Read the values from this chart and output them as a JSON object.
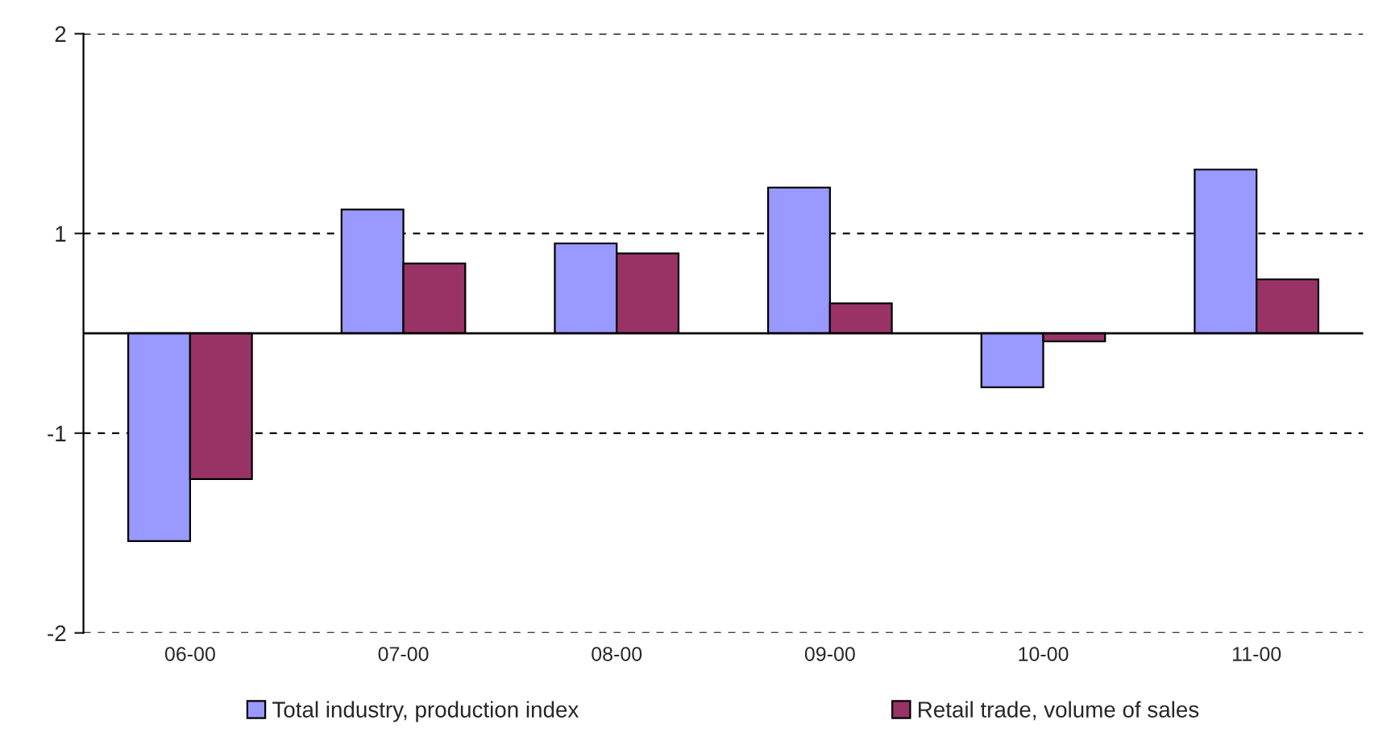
{
  "chart_data": {
    "type": "bar",
    "categories": [
      "06-00",
      "07-00",
      "08-00",
      "09-00",
      "10-00",
      "11-00"
    ],
    "series": [
      {
        "name": "Total industry, production index",
        "color": "#9999ff",
        "values": [
          -1.04,
          0.62,
          0.45,
          0.73,
          -0.27,
          0.82
        ]
      },
      {
        "name": "Retail trade, volume of sales",
        "color": "#993366",
        "values": [
          -0.73,
          0.35,
          0.4,
          0.15,
          -0.04,
          0.27
        ]
      }
    ],
    "ylim": [
      -1.5,
      1.5
    ],
    "yticks": [
      {
        "value": -1.5,
        "label": "-2"
      },
      {
        "value": -0.5,
        "label": "-1"
      },
      {
        "value": 0.5,
        "label": "1"
      },
      {
        "value": 1.5,
        "label": "2"
      }
    ],
    "grid": "y",
    "legend": "bottom"
  }
}
